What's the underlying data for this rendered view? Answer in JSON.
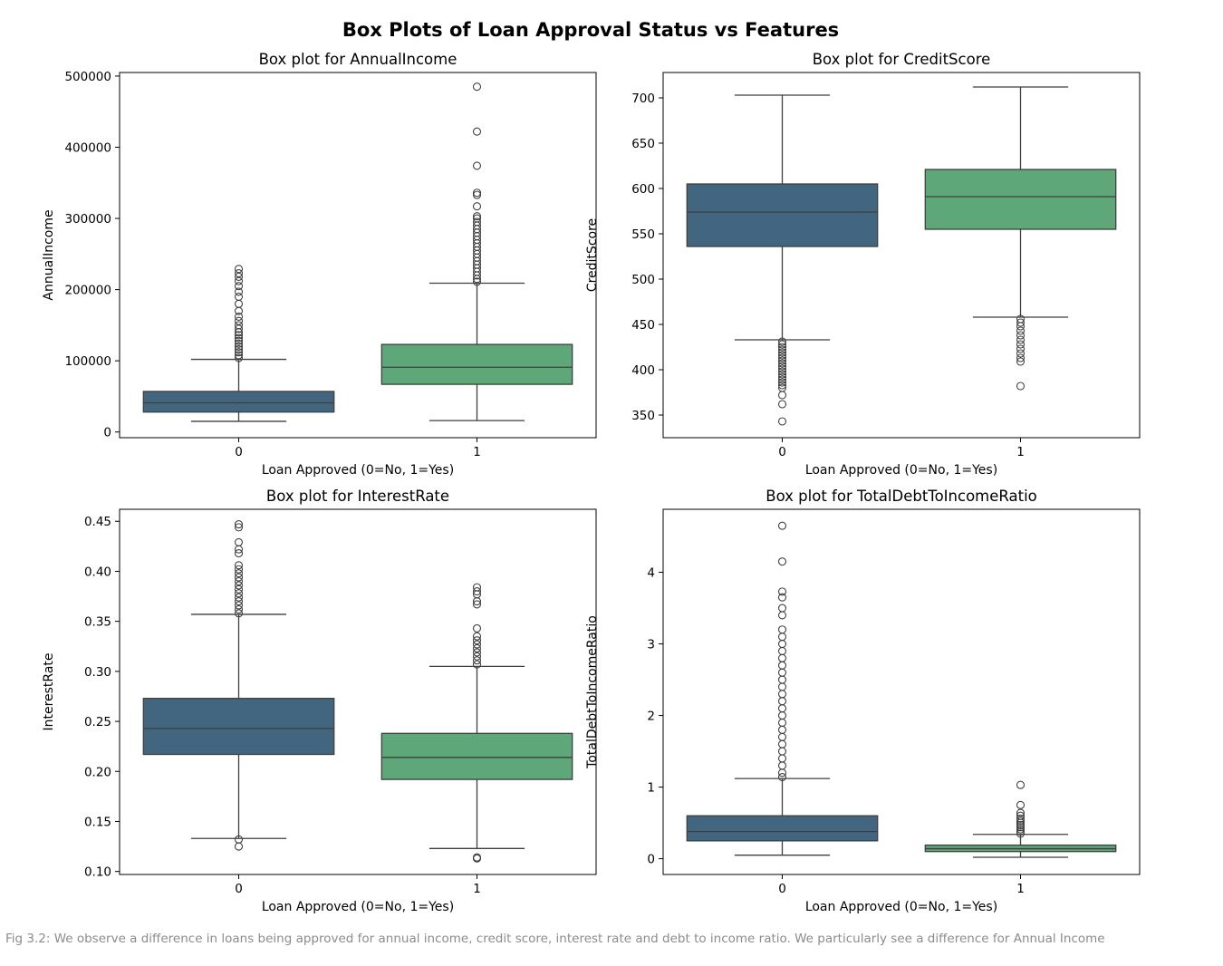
{
  "figure_title": "Box Plots of Loan Approval Status vs Features",
  "caption": "Fig 3.2: We observe a difference in loans being approved for annual income, credit score, interest rate and debt to income ratio. We particularly see a difference for Annual Income",
  "colors": {
    "group_0": "#426580",
    "group_1": "#5ea778",
    "line": "#3f3f3f",
    "frame": "#000000"
  },
  "chart_data": [
    {
      "type": "box",
      "title": "Box plot for AnnualIncome",
      "xlabel": "Loan Approved (0=No, 1=Yes)",
      "ylabel": "AnnualIncome",
      "categories": [
        "0",
        "1"
      ],
      "ylim": [
        -8000,
        505000
      ],
      "yticks": [
        0,
        100000,
        200000,
        300000,
        400000,
        500000
      ],
      "yticklabels": [
        "0",
        "100000",
        "200000",
        "300000",
        "400000",
        "500000"
      ],
      "boxes": [
        {
          "whislo": 15000,
          "q1": 28000,
          "med": 41000,
          "q3": 57000,
          "whishi": 102000,
          "fliers": [
            104000,
            108000,
            112000,
            116000,
            120000,
            124000,
            128000,
            132000,
            136000,
            140000,
            145000,
            150000,
            156000,
            162000,
            170000,
            180000,
            190000,
            197000,
            205000,
            212000,
            218000,
            223000,
            229000
          ]
        },
        {
          "whislo": 16000,
          "q1": 67000,
          "med": 91000,
          "q3": 123000,
          "whishi": 209000,
          "fliers": [
            211000,
            215000,
            220000,
            225000,
            230000,
            235000,
            240000,
            245000,
            250000,
            255000,
            260000,
            265000,
            270000,
            275000,
            280000,
            285000,
            290000,
            295000,
            300000,
            303000,
            317000,
            333000,
            336000,
            374000,
            422000,
            485000
          ]
        }
      ]
    },
    {
      "type": "box",
      "title": "Box plot for CreditScore",
      "xlabel": "Loan Approved (0=No, 1=Yes)",
      "ylabel": "CreditScore",
      "categories": [
        "0",
        "1"
      ],
      "ylim": [
        325,
        728
      ],
      "yticks": [
        350,
        400,
        450,
        500,
        550,
        600,
        650,
        700
      ],
      "yticklabels": [
        "350",
        "400",
        "450",
        "500",
        "550",
        "600",
        "650",
        "700"
      ],
      "boxes": [
        {
          "whislo": 433,
          "q1": 536,
          "med": 574,
          "q3": 605,
          "whishi": 703,
          "fliers": [
            343,
            362,
            372,
            380,
            383,
            386,
            389,
            392,
            395,
            398,
            401,
            404,
            407,
            410,
            413,
            416,
            419,
            422,
            425,
            428,
            431
          ]
        },
        {
          "whislo": 458,
          "q1": 555,
          "med": 591,
          "q3": 621,
          "whishi": 712,
          "fliers": [
            382,
            409,
            413,
            418,
            423,
            428,
            433,
            438,
            443,
            448,
            452,
            456
          ]
        }
      ]
    },
    {
      "type": "box",
      "title": "Box plot for InterestRate",
      "xlabel": "Loan Approved (0=No, 1=Yes)",
      "ylabel": "InterestRate",
      "categories": [
        "0",
        "1"
      ],
      "ylim": [
        0.097,
        0.462
      ],
      "yticks": [
        0.1,
        0.15,
        0.2,
        0.25,
        0.3,
        0.35,
        0.4,
        0.45
      ],
      "yticklabels": [
        "0.10",
        "0.15",
        "0.20",
        "0.25",
        "0.30",
        "0.35",
        "0.40",
        "0.45"
      ],
      "boxes": [
        {
          "whislo": 0.133,
          "q1": 0.217,
          "med": 0.243,
          "q3": 0.273,
          "whishi": 0.357,
          "fliers": [
            0.125,
            0.132,
            0.358,
            0.362,
            0.366,
            0.37,
            0.374,
            0.378,
            0.382,
            0.386,
            0.39,
            0.394,
            0.398,
            0.402,
            0.406,
            0.418,
            0.422,
            0.429,
            0.444,
            0.447
          ]
        },
        {
          "whislo": 0.123,
          "q1": 0.192,
          "med": 0.214,
          "q3": 0.238,
          "whishi": 0.305,
          "fliers": [
            0.113,
            0.114,
            0.307,
            0.311,
            0.315,
            0.319,
            0.323,
            0.327,
            0.331,
            0.335,
            0.343,
            0.367,
            0.37,
            0.377,
            0.38,
            0.384
          ]
        }
      ]
    },
    {
      "type": "box",
      "title": "Box plot for TotalDebtToIncomeRatio",
      "xlabel": "Loan Approved (0=No, 1=Yes)",
      "ylabel": "TotalDebtToIncomeRatio",
      "categories": [
        "0",
        "1"
      ],
      "ylim": [
        -0.22,
        4.88
      ],
      "yticks": [
        0,
        1,
        2,
        3,
        4
      ],
      "yticklabels": [
        "0",
        "1",
        "2",
        "3",
        "4"
      ],
      "boxes": [
        {
          "whislo": 0.05,
          "q1": 0.25,
          "med": 0.38,
          "q3": 0.6,
          "whishi": 1.12,
          "fliers": [
            1.14,
            1.2,
            1.3,
            1.4,
            1.5,
            1.6,
            1.7,
            1.8,
            1.9,
            2.0,
            2.1,
            2.2,
            2.3,
            2.4,
            2.5,
            2.6,
            2.7,
            2.8,
            2.9,
            3.0,
            3.1,
            3.2,
            3.4,
            3.5,
            3.65,
            3.73,
            4.15,
            4.65
          ]
        },
        {
          "whislo": 0.02,
          "q1": 0.1,
          "med": 0.14,
          "q3": 0.19,
          "whishi": 0.34,
          "fliers": [
            0.35,
            0.38,
            0.41,
            0.44,
            0.47,
            0.5,
            0.53,
            0.56,
            0.6,
            0.64,
            0.75,
            1.03
          ]
        }
      ]
    }
  ]
}
